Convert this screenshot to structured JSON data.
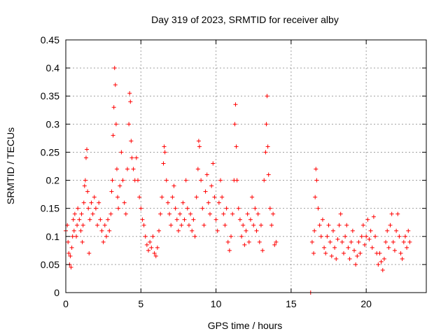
{
  "chart_data": {
    "type": "scatter",
    "title": "Day 319 of 2023, SRMTID for receiver alby",
    "xlabel": "GPS time / hours",
    "ylabel": "SRMTID / TECUs",
    "xlim": [
      0,
      24
    ],
    "ylim": [
      0,
      0.45
    ],
    "xticks": [
      0,
      5,
      10,
      15,
      20
    ],
    "yticks": [
      0,
      0.05,
      0.1,
      0.15,
      0.2,
      0.25,
      0.3,
      0.35,
      0.4,
      0.45
    ],
    "grid": true,
    "marker": "plus",
    "color": "#ff0000",
    "series_points": [
      [
        0.0,
        0.11
      ],
      [
        0.1,
        0.12
      ],
      [
        0.15,
        0.09
      ],
      [
        0.2,
        0.07
      ],
      [
        0.25,
        0.05
      ],
      [
        0.3,
        0.065
      ],
      [
        0.35,
        0.045
      ],
      [
        0.4,
        0.08
      ],
      [
        0.45,
        0.1
      ],
      [
        0.5,
        0.13
      ],
      [
        0.55,
        0.11
      ],
      [
        0.6,
        0.14
      ],
      [
        0.7,
        0.1
      ],
      [
        0.75,
        0.12
      ],
      [
        0.8,
        0.15
      ],
      [
        0.9,
        0.13
      ],
      [
        1.0,
        0.11
      ],
      [
        1.05,
        0.14
      ],
      [
        1.1,
        0.09
      ],
      [
        1.15,
        0.12
      ],
      [
        1.2,
        0.16
      ],
      [
        1.25,
        0.19
      ],
      [
        1.3,
        0.2
      ],
      [
        1.35,
        0.24
      ],
      [
        1.4,
        0.255
      ],
      [
        1.45,
        0.18
      ],
      [
        1.5,
        0.15
      ],
      [
        1.55,
        0.07
      ],
      [
        1.6,
        0.13
      ],
      [
        1.7,
        0.16
      ],
      [
        1.8,
        0.14
      ],
      [
        1.9,
        0.17
      ],
      [
        2.0,
        0.15
      ],
      [
        2.1,
        0.12
      ],
      [
        2.2,
        0.16
      ],
      [
        2.3,
        0.13
      ],
      [
        2.4,
        0.11
      ],
      [
        2.5,
        0.09
      ],
      [
        2.6,
        0.12
      ],
      [
        2.7,
        0.1
      ],
      [
        2.8,
        0.13
      ],
      [
        2.9,
        0.11
      ],
      [
        3.0,
        0.14
      ],
      [
        3.05,
        0.18
      ],
      [
        3.1,
        0.2
      ],
      [
        3.15,
        0.28
      ],
      [
        3.2,
        0.33
      ],
      [
        3.25,
        0.4
      ],
      [
        3.3,
        0.37
      ],
      [
        3.35,
        0.3
      ],
      [
        3.4,
        0.22
      ],
      [
        3.45,
        0.17
      ],
      [
        3.5,
        0.15
      ],
      [
        3.6,
        0.19
      ],
      [
        3.7,
        0.25
      ],
      [
        3.8,
        0.2
      ],
      [
        3.9,
        0.16
      ],
      [
        4.0,
        0.14
      ],
      [
        4.1,
        0.22
      ],
      [
        4.2,
        0.3
      ],
      [
        4.25,
        0.355
      ],
      [
        4.3,
        0.34
      ],
      [
        4.35,
        0.27
      ],
      [
        4.4,
        0.24
      ],
      [
        4.5,
        0.22
      ],
      [
        4.6,
        0.2
      ],
      [
        4.7,
        0.24
      ],
      [
        4.8,
        0.2
      ],
      [
        4.9,
        0.17
      ],
      [
        5.0,
        0.15
      ],
      [
        5.1,
        0.13
      ],
      [
        5.2,
        0.12
      ],
      [
        5.3,
        0.1
      ],
      [
        5.4,
        0.085
      ],
      [
        5.5,
        0.075
      ],
      [
        5.6,
        0.09
      ],
      [
        5.7,
        0.08
      ],
      [
        5.8,
        0.1
      ],
      [
        5.9,
        0.07
      ],
      [
        6.0,
        0.065
      ],
      [
        6.1,
        0.08
      ],
      [
        6.2,
        0.11
      ],
      [
        6.3,
        0.14
      ],
      [
        6.4,
        0.17
      ],
      [
        6.5,
        0.23
      ],
      [
        6.55,
        0.26
      ],
      [
        6.6,
        0.25
      ],
      [
        6.7,
        0.2
      ],
      [
        6.8,
        0.16
      ],
      [
        6.9,
        0.14
      ],
      [
        7.0,
        0.12
      ],
      [
        7.1,
        0.17
      ],
      [
        7.2,
        0.19
      ],
      [
        7.3,
        0.15
      ],
      [
        7.4,
        0.13
      ],
      [
        7.5,
        0.11
      ],
      [
        7.6,
        0.14
      ],
      [
        7.7,
        0.12
      ],
      [
        7.8,
        0.16
      ],
      [
        7.9,
        0.13
      ],
      [
        8.0,
        0.2
      ],
      [
        8.1,
        0.15
      ],
      [
        8.2,
        0.12
      ],
      [
        8.3,
        0.14
      ],
      [
        8.4,
        0.11
      ],
      [
        8.5,
        0.13
      ],
      [
        8.6,
        0.1
      ],
      [
        8.7,
        0.17
      ],
      [
        8.8,
        0.22
      ],
      [
        8.85,
        0.27
      ],
      [
        8.9,
        0.26
      ],
      [
        9.0,
        0.2
      ],
      [
        9.1,
        0.15
      ],
      [
        9.2,
        0.12
      ],
      [
        9.3,
        0.18
      ],
      [
        9.4,
        0.21
      ],
      [
        9.5,
        0.16
      ],
      [
        9.6,
        0.14
      ],
      [
        9.7,
        0.19
      ],
      [
        9.8,
        0.23
      ],
      [
        9.9,
        0.17
      ],
      [
        10.0,
        0.13
      ],
      [
        10.1,
        0.11
      ],
      [
        10.2,
        0.16
      ],
      [
        10.3,
        0.2
      ],
      [
        10.4,
        0.17
      ],
      [
        10.5,
        0.14
      ],
      [
        10.6,
        0.12
      ],
      [
        10.7,
        0.15
      ],
      [
        10.8,
        0.09
      ],
      [
        10.9,
        0.075
      ],
      [
        11.0,
        0.1
      ],
      [
        11.1,
        0.14
      ],
      [
        11.2,
        0.2
      ],
      [
        11.25,
        0.3
      ],
      [
        11.3,
        0.335
      ],
      [
        11.35,
        0.26
      ],
      [
        11.4,
        0.2
      ],
      [
        11.5,
        0.15
      ],
      [
        11.6,
        0.13
      ],
      [
        11.7,
        0.1
      ],
      [
        11.8,
        0.12
      ],
      [
        11.9,
        0.085
      ],
      [
        12.0,
        0.11
      ],
      [
        12.1,
        0.14
      ],
      [
        12.2,
        0.09
      ],
      [
        12.3,
        0.13
      ],
      [
        12.4,
        0.17
      ],
      [
        12.5,
        0.12
      ],
      [
        12.6,
        0.15
      ],
      [
        12.7,
        0.11
      ],
      [
        12.8,
        0.14
      ],
      [
        12.9,
        0.09
      ],
      [
        13.0,
        0.12
      ],
      [
        13.1,
        0.075
      ],
      [
        13.2,
        0.2
      ],
      [
        13.3,
        0.25
      ],
      [
        13.35,
        0.3
      ],
      [
        13.4,
        0.35
      ],
      [
        13.45,
        0.26
      ],
      [
        13.5,
        0.21
      ],
      [
        13.6,
        0.15
      ],
      [
        13.7,
        0.12
      ],
      [
        13.8,
        0.14
      ],
      [
        13.9,
        0.085
      ],
      [
        14.0,
        0.09
      ],
      [
        16.3,
        0.0
      ],
      [
        16.4,
        0.09
      ],
      [
        16.5,
        0.07
      ],
      [
        16.55,
        0.11
      ],
      [
        16.6,
        0.17
      ],
      [
        16.65,
        0.22
      ],
      [
        16.7,
        0.2
      ],
      [
        16.8,
        0.15
      ],
      [
        16.9,
        0.12
      ],
      [
        17.0,
        0.1
      ],
      [
        17.1,
        0.13
      ],
      [
        17.2,
        0.08
      ],
      [
        17.3,
        0.07
      ],
      [
        17.4,
        0.1
      ],
      [
        17.5,
        0.12
      ],
      [
        17.6,
        0.09
      ],
      [
        17.7,
        0.065
      ],
      [
        17.8,
        0.11
      ],
      [
        17.9,
        0.08
      ],
      [
        18.0,
        0.06
      ],
      [
        18.1,
        0.095
      ],
      [
        18.2,
        0.12
      ],
      [
        18.3,
        0.14
      ],
      [
        18.4,
        0.09
      ],
      [
        18.5,
        0.07
      ],
      [
        18.6,
        0.1
      ],
      [
        18.7,
        0.12
      ],
      [
        18.8,
        0.08
      ],
      [
        18.9,
        0.06
      ],
      [
        19.0,
        0.09
      ],
      [
        19.1,
        0.11
      ],
      [
        19.2,
        0.075
      ],
      [
        19.3,
        0.05
      ],
      [
        19.4,
        0.065
      ],
      [
        19.5,
        0.09
      ],
      [
        19.6,
        0.07
      ],
      [
        19.7,
        0.1
      ],
      [
        19.8,
        0.12
      ],
      [
        19.9,
        0.085
      ],
      [
        20.0,
        0.1
      ],
      [
        20.1,
        0.13
      ],
      [
        20.2,
        0.095
      ],
      [
        20.3,
        0.11
      ],
      [
        20.4,
        0.08
      ],
      [
        20.5,
        0.135
      ],
      [
        20.6,
        0.1
      ],
      [
        20.7,
        0.07
      ],
      [
        20.8,
        0.05
      ],
      [
        20.9,
        0.07
      ],
      [
        21.0,
        0.055
      ],
      [
        21.1,
        0.04
      ],
      [
        21.2,
        0.06
      ],
      [
        21.3,
        0.09
      ],
      [
        21.4,
        0.11
      ],
      [
        21.5,
        0.08
      ],
      [
        21.6,
        0.12
      ],
      [
        21.7,
        0.14
      ],
      [
        21.8,
        0.09
      ],
      [
        21.9,
        0.075
      ],
      [
        22.0,
        0.11
      ],
      [
        22.1,
        0.14
      ],
      [
        22.2,
        0.1
      ],
      [
        22.3,
        0.07
      ],
      [
        22.4,
        0.06
      ],
      [
        22.5,
        0.09
      ],
      [
        22.6,
        0.1
      ],
      [
        22.7,
        0.08
      ],
      [
        22.8,
        0.11
      ],
      [
        22.9,
        0.09
      ]
    ]
  }
}
